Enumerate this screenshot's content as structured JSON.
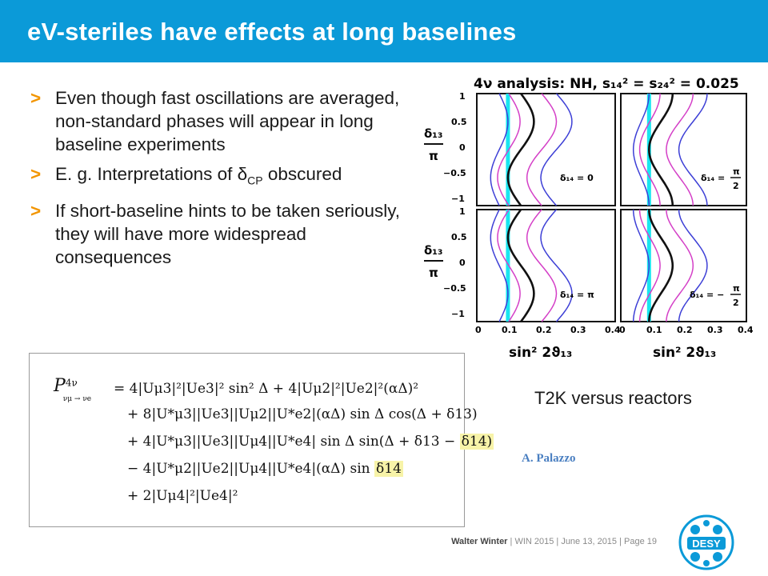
{
  "slide": {
    "title": "eV-steriles have effects at long baselines",
    "bullets": [
      {
        "marker": ">",
        "text": "Even though fast oscillations are averaged, non-standard phases will appear in long baseline experiments"
      },
      {
        "marker": ">",
        "text_before": "E. g. Interpretations of ",
        "symbol": "δ",
        "sub": "CP",
        "text_after": " obscured"
      },
      {
        "marker": ">",
        "text": "If short-baseline hints to be taken seriously, they will have more widespread consequences"
      }
    ],
    "caption": "T2K versus reactors",
    "author": "A. Palazzo"
  },
  "figure": {
    "title": "4ν analysis: NH, s₁₄² = s₂₄² = 0.025",
    "y_tick_labels": [
      "1",
      "0.5",
      "0",
      "−0.5",
      "−1"
    ],
    "x_tick_labels_left": [
      "0",
      "0.1",
      "0.2",
      "0.3",
      "0.4"
    ],
    "x_tick_labels_right": [
      "0",
      "0.1",
      "0.2",
      "0.3",
      "0.4"
    ],
    "x_axis_label": "sin² 2ϑ₁₃",
    "y_axis_num": "δ₁₃",
    "y_axis_den": "π",
    "panels": [
      {
        "label": "δ₁₄ = 0"
      },
      {
        "label_prefix": "δ₁₄ =",
        "num": "π",
        "den": "2"
      },
      {
        "label": "δ₁₄ = π"
      },
      {
        "label_prefix": "δ₁₄ = −",
        "num": "π",
        "den": "2"
      }
    ],
    "colors": {
      "cyan": "#19e6f0",
      "black": "#111111",
      "magenta": "#d43fc7",
      "blue": "#3d3fd6"
    }
  },
  "formula": {
    "lhs_P": "P",
    "lhs_sup": "4ν",
    "lhs_sub": "νμ → νe",
    "lines": [
      "= 4|Uμ3|²|Ue3|² sin² Δ + 4|Uμ2|²|Ue2|²(αΔ)²",
      "+ 8|U*μ3||Ue3||Uμ2||U*e2|(αΔ) sin Δ cos(Δ + δ13)",
      "+ 4|U*μ3||Ue3||Uμ4||U*e4| sin Δ sin(Δ + δ13 − ",
      "− 4|U*μ2||Ue2||Uμ4||U*e4|(αΔ) sin ",
      "+ 2|Uμ4|²|Ue4|²"
    ],
    "highlight_1": "δ14)",
    "highlight_2": "δ14"
  },
  "footer": {
    "author": "Walter Winter",
    "rest": " | WIN 2015 | June 13, 2015 | Page 19"
  },
  "logo": {
    "text": "DESY",
    "color": "#0b9ad8"
  }
}
